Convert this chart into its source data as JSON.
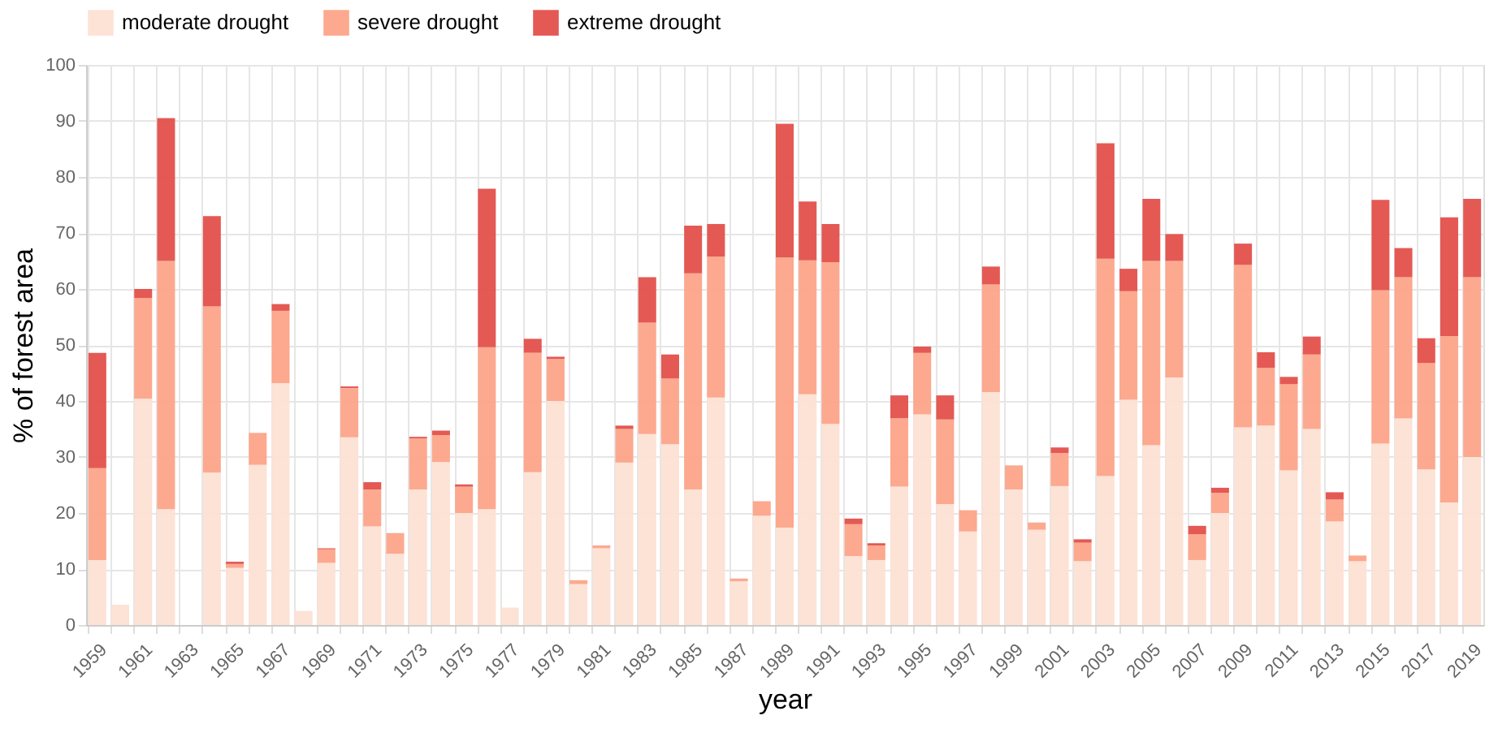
{
  "chart_data": {
    "type": "bar",
    "stacked": true,
    "xlabel": "year",
    "ylabel": "% of forest area",
    "categories": [
      "1959",
      null,
      "1961",
      null,
      "1963",
      null,
      "1965",
      null,
      "1967",
      null,
      "1969",
      null,
      "1971",
      null,
      "1973",
      null,
      "1975",
      null,
      "1977",
      null,
      "1979",
      null,
      "1981",
      null,
      "1983",
      null,
      "1985",
      null,
      "1987",
      null,
      "1989",
      null,
      "1991",
      null,
      "1993",
      null,
      "1995",
      null,
      "1997",
      null,
      "1999",
      null,
      "2001",
      null,
      "2003",
      null,
      "2005",
      null,
      "2007",
      null,
      "2009",
      null,
      "2011",
      null,
      "2013",
      null,
      "2015",
      null,
      "2017",
      null,
      "2019"
    ],
    "series": [
      {
        "name": "moderate drought",
        "color": "#fde0d4",
        "values": [
          11.6,
          3.6,
          40.4,
          20.7,
          null,
          27.2,
          10.2,
          28.6,
          43.2,
          2.5,
          11.1,
          33.5,
          17.6,
          12.7,
          24.2,
          29.1,
          20.0,
          20.7,
          3.1,
          27.3,
          40.0,
          7.3,
          13.7,
          29.0,
          34.1,
          32.3,
          24.2,
          40.6,
          7.8,
          19.5,
          17.4,
          41.2,
          35.9,
          12.3,
          11.6,
          24.7,
          37.6,
          21.6,
          16.7,
          41.6,
          24.2,
          17.0,
          24.8,
          11.4,
          26.6,
          40.2,
          32.1,
          44.2,
          11.6,
          20.0,
          35.3,
          35.6,
          27.6,
          35.0,
          18.5,
          11.4,
          32.4,
          36.9,
          27.8,
          21.9,
          30.0
        ]
      },
      {
        "name": "severe drought",
        "color": "#fca489",
        "values": [
          16.4,
          null,
          18.0,
          44.3,
          null,
          29.7,
          0.7,
          5.7,
          12.9,
          null,
          2.4,
          8.8,
          6.6,
          3.7,
          9.1,
          4.8,
          4.7,
          28.9,
          null,
          21.3,
          7.5,
          0.7,
          0.5,
          6.0,
          19.9,
          11.7,
          38.6,
          25.2,
          0.5,
          2.6,
          48.2,
          23.9,
          28.9,
          5.7,
          2.6,
          12.2,
          11.0,
          15.1,
          3.8,
          19.2,
          4.3,
          1.3,
          5.9,
          3.3,
          38.8,
          19.4,
          32.9,
          20.8,
          4.6,
          3.6,
          29.0,
          10.3,
          15.4,
          13.3,
          3.9,
          1.0,
          27.4,
          25.2,
          19.0,
          29.7,
          32.1
        ]
      },
      {
        "name": "extreme drought",
        "color": "#e3504b",
        "values": [
          20.6,
          null,
          1.6,
          25.5,
          null,
          16.1,
          0.4,
          null,
          1.2,
          null,
          0.2,
          0.3,
          1.3,
          null,
          0.3,
          0.8,
          0.4,
          28.3,
          null,
          2.5,
          0.4,
          null,
          null,
          0.6,
          8.1,
          4.3,
          8.5,
          5.8,
          null,
          null,
          23.9,
          10.5,
          6.8,
          1.0,
          0.4,
          4.1,
          1.1,
          4.3,
          null,
          3.2,
          null,
          null,
          1.0,
          0.6,
          20.6,
          4.0,
          11.1,
          4.8,
          1.5,
          0.9,
          3.8,
          2.8,
          1.3,
          3.2,
          1.3,
          null,
          16.1,
          5.2,
          4.4,
          21.2,
          14.0
        ]
      }
    ],
    "ylim": [
      0,
      100
    ],
    "yticks": [
      0,
      10,
      20,
      30,
      40,
      50,
      60,
      70,
      80,
      90,
      100
    ],
    "grid": true,
    "legend": "top"
  }
}
